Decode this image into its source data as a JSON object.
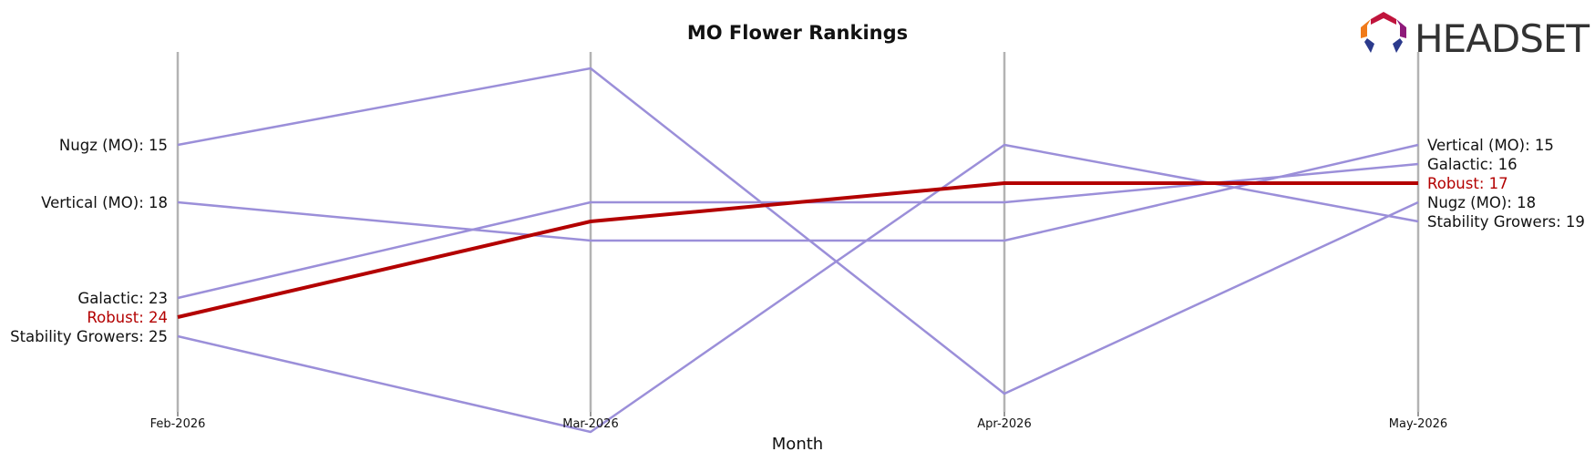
{
  "chart_data": {
    "type": "line",
    "title": "MO Flower Rankings",
    "xlabel": "Month",
    "ylabel": "",
    "y_inverted": true,
    "ylim": [
      11,
      30
    ],
    "grid": "vertical lines at each month",
    "categories": [
      "Feb-2026",
      "Mar-2026",
      "Apr-2026",
      "May-2026"
    ],
    "series": [
      {
        "name": "Nugz (MO)",
        "values": [
          15,
          11,
          28,
          18
        ],
        "color": "#9b8fd9",
        "highlight": false,
        "start_label": "Nugz (MO): 15",
        "end_label": "Nugz (MO): 18"
      },
      {
        "name": "Vertical (MO)",
        "values": [
          18,
          20,
          20,
          15
        ],
        "color": "#9b8fd9",
        "highlight": false,
        "start_label": "Vertical (MO): 18",
        "end_label": "Vertical (MO): 15"
      },
      {
        "name": "Galactic",
        "values": [
          23,
          18,
          18,
          16
        ],
        "color": "#9b8fd9",
        "highlight": false,
        "start_label": "Galactic: 23",
        "end_label": "Galactic: 16"
      },
      {
        "name": "Stability Growers",
        "values": [
          25,
          30,
          15,
          19
        ],
        "color": "#9b8fd9",
        "highlight": false,
        "start_label": "Stability Growers: 25",
        "end_label": "Stability Growers: 19"
      },
      {
        "name": "Robust",
        "values": [
          24,
          19,
          17,
          17
        ],
        "color": "#b30000",
        "highlight": true,
        "start_label": "Robust: 24",
        "end_label": "Robust: 17"
      }
    ],
    "start_label_order": [
      "Nugz (MO)",
      "Vertical (MO)",
      "Galactic",
      "Robust",
      "Stability Growers"
    ],
    "end_label_order": [
      "Vertical (MO)",
      "Galactic",
      "Robust",
      "Nugz (MO)",
      "Stability Growers"
    ]
  },
  "logo": {
    "text": "HEADSET",
    "icon": "headset-hexagon-logo-icon"
  },
  "colors": {
    "gridline": "#b3b3b3",
    "default_line": "#9b8fd9",
    "highlight_line": "#b30000",
    "text": "#111111"
  }
}
